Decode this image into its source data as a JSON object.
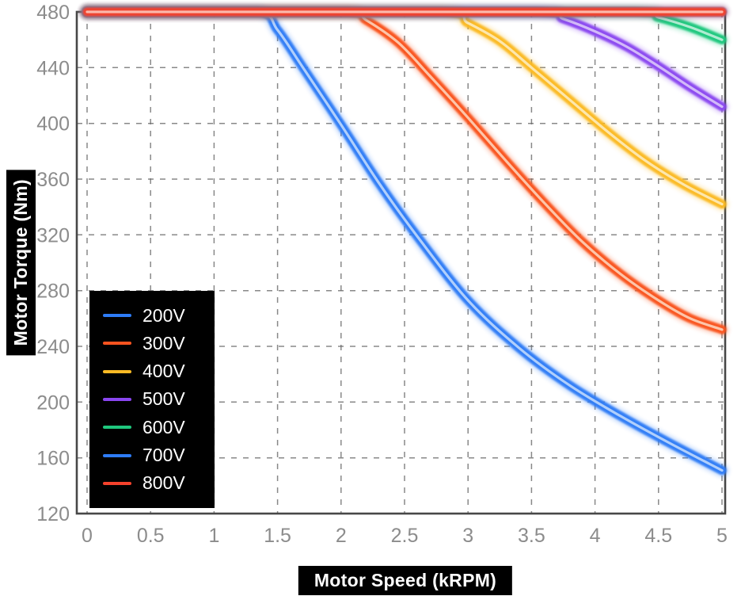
{
  "chart_data": {
    "type": "line",
    "title": "",
    "xlabel": "Motor Speed (kRPM)",
    "ylabel": "Motor Torque (Nm)",
    "xlim": [
      0,
      5
    ],
    "ylim": [
      120,
      480
    ],
    "xticks": [
      "0",
      "0.5",
      "1",
      "1.5",
      "2",
      "2.5",
      "3",
      "3.5",
      "4",
      "4.5",
      "5"
    ],
    "yticks": [
      "120",
      "160",
      "200",
      "240",
      "280",
      "320",
      "360",
      "400",
      "440",
      "480"
    ],
    "grid": true,
    "grid_style": "dashed",
    "legend_position": "bottom-left",
    "theme": {
      "background": "#ffffff",
      "plot_border": "#474747",
      "grid": "#6b6b6b",
      "tick_label": "#8c8c8c",
      "axis_title_bg": "#000000",
      "axis_title_fg": "#ffffff",
      "legend_bg": "#000000",
      "legend_fg": "#ffffff"
    },
    "series": [
      {
        "name": "200V",
        "color": "#2e7cf6",
        "core": "#b0cffc",
        "points": [
          [
            0,
            480
          ],
          [
            0.7,
            480
          ],
          [
            1.35,
            480
          ],
          [
            1.5,
            467
          ],
          [
            1.7,
            440
          ],
          [
            2.0,
            399
          ],
          [
            2.3,
            357
          ],
          [
            2.6,
            319
          ],
          [
            3.0,
            273
          ],
          [
            3.4,
            239
          ],
          [
            3.8,
            212
          ],
          [
            4.2,
            190
          ],
          [
            4.6,
            170
          ],
          [
            5.0,
            151
          ]
        ]
      },
      {
        "name": "300V",
        "color": "#f9531f",
        "core": "#fdc5a9",
        "points": [
          [
            0,
            480
          ],
          [
            1.2,
            480
          ],
          [
            2.05,
            480
          ],
          [
            2.2,
            474
          ],
          [
            2.45,
            458
          ],
          [
            2.7,
            434
          ],
          [
            3.0,
            404
          ],
          [
            3.3,
            373
          ],
          [
            3.6,
            343
          ],
          [
            3.9,
            315
          ],
          [
            4.2,
            292
          ],
          [
            4.5,
            273
          ],
          [
            4.75,
            260
          ],
          [
            5.0,
            252
          ]
        ]
      },
      {
        "name": "400V",
        "color": "#fbba24",
        "core": "#fde7ad",
        "points": [
          [
            0,
            480
          ],
          [
            1.5,
            480
          ],
          [
            2.8,
            480
          ],
          [
            3.0,
            472
          ],
          [
            3.25,
            459
          ],
          [
            3.5,
            440
          ],
          [
            3.8,
            417
          ],
          [
            4.1,
            394
          ],
          [
            4.4,
            373
          ],
          [
            4.7,
            356
          ],
          [
            5.0,
            342
          ]
        ]
      },
      {
        "name": "500V",
        "color": "#8a46f0",
        "core": "#d2b9f9",
        "points": [
          [
            0,
            480
          ],
          [
            2.0,
            480
          ],
          [
            3.55,
            480
          ],
          [
            3.75,
            475
          ],
          [
            4.0,
            466
          ],
          [
            4.25,
            455
          ],
          [
            4.5,
            441
          ],
          [
            4.75,
            426
          ],
          [
            5.0,
            412
          ]
        ]
      },
      {
        "name": "600V",
        "color": "#1fc77d",
        "core": "#aeecd1",
        "points": [
          [
            0,
            480
          ],
          [
            2.5,
            480
          ],
          [
            4.3,
            480
          ],
          [
            4.5,
            476
          ],
          [
            4.75,
            469
          ],
          [
            5.0,
            460
          ]
        ]
      },
      {
        "name": "700V",
        "color": "#2e7cf6",
        "core": "#b0cffc",
        "points": [
          [
            0,
            480
          ],
          [
            2.5,
            480
          ],
          [
            5.0,
            480
          ]
        ]
      },
      {
        "name": "800V",
        "color": "#f5422c",
        "core": "#fcb7aa",
        "points": [
          [
            0,
            480
          ],
          [
            2.5,
            480
          ],
          [
            5.0,
            480
          ]
        ]
      }
    ]
  }
}
